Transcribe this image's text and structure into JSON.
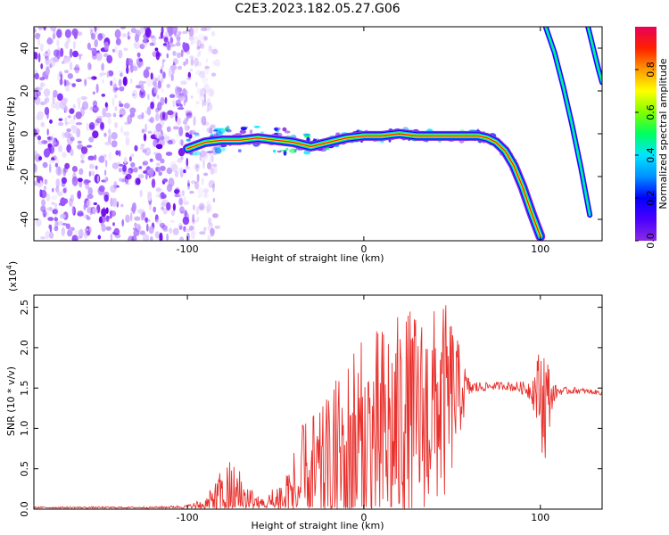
{
  "title": "C2E3.2023.182.05.27.G06",
  "chart_data": [
    {
      "type": "heatmap",
      "xlabel": "Height of straight line (km)",
      "ylabel": "Frequency (Hz)",
      "xlim": [
        -187,
        135
      ],
      "ylim": [
        -50,
        50
      ],
      "xticks": [
        -100,
        0,
        100
      ],
      "yticks": [
        -40,
        -20,
        0,
        20,
        40
      ],
      "colorbar": {
        "label": "Normalized spectral amplitude",
        "range": [
          0,
          1
        ],
        "ticks": [
          "0.0",
          "0.2",
          "0.4",
          "0.6",
          "0.8"
        ],
        "colormap": [
          "#8a2be2",
          "#4b00ff",
          "#0000ff",
          "#0090ff",
          "#00e5ff",
          "#00ff60",
          "#80ff00",
          "#ffff00",
          "#ff9900",
          "#ff2000",
          "#e8005a"
        ]
      },
      "features": [
        {
          "name": "noise",
          "x_range": [
            -187,
            -93
          ],
          "freq_range": [
            -50,
            50
          ]
        },
        {
          "name": "main_ridge",
          "x": [
            -100,
            -90,
            -80,
            -70,
            -60,
            -50,
            -40,
            -30,
            -20,
            -10,
            0,
            10,
            20,
            30,
            40,
            50,
            60,
            65,
            70,
            75,
            80,
            85,
            90,
            95,
            100
          ],
          "freq": [
            -7,
            -4,
            -3,
            -3,
            -2,
            -3,
            -4,
            -6,
            -4,
            -2,
            -1,
            -1,
            0,
            -1,
            -1,
            -1,
            -1,
            -1,
            -2,
            -4,
            -8,
            -15,
            -25,
            -37,
            -48
          ]
        },
        {
          "name": "right_ridge_1",
          "x": [
            103,
            108,
            113,
            118,
            123,
            128
          ],
          "freq": [
            50,
            38,
            22,
            4,
            -16,
            -38
          ]
        },
        {
          "name": "right_ridge_2",
          "x": [
            127,
            130,
            133,
            135
          ],
          "freq": [
            50,
            40,
            30,
            24
          ]
        }
      ]
    },
    {
      "type": "line",
      "xlabel": "Height of straight line (km)",
      "ylabel": "SNR (10 * v/v)",
      "yscale_label": "(x10",
      "yscale_exp": "4",
      "yscale_close": ")",
      "xlim": [
        -187,
        135
      ],
      "ylim": [
        0,
        2.65
      ],
      "xticks": [
        -100,
        0,
        100
      ],
      "yticks": [
        0.0,
        0.5,
        1.0,
        1.5,
        2.0,
        2.5
      ],
      "color": "#e8312d",
      "envelope": {
        "x": [
          -187,
          -120,
          -100,
          -90,
          -85,
          -80,
          -75,
          -70,
          -65,
          -60,
          -55,
          -50,
          -45,
          -40,
          -35,
          -30,
          -25,
          -20,
          -15,
          -10,
          -5,
          0,
          5,
          10,
          15,
          20,
          25,
          30,
          35,
          40,
          45,
          50,
          55,
          60,
          70,
          80,
          90,
          95,
          100,
          102,
          104,
          106,
          110,
          120,
          130,
          135
        ],
        "base": [
          0.02,
          0.02,
          0.03,
          0.05,
          0.1,
          0.14,
          0.18,
          0.15,
          0.1,
          0.07,
          0.06,
          0.08,
          0.12,
          0.2,
          0.28,
          0.35,
          0.4,
          0.45,
          0.55,
          0.62,
          0.7,
          0.75,
          0.8,
          0.85,
          0.95,
          1.0,
          1.05,
          1.1,
          1.15,
          1.25,
          1.3,
          1.4,
          1.45,
          1.5,
          1.52,
          1.53,
          1.5,
          1.48,
          1.45,
          1.35,
          1.3,
          1.4,
          1.46,
          1.47,
          1.45,
          1.44
        ],
        "amp": [
          0.01,
          0.01,
          0.02,
          0.1,
          0.2,
          0.4,
          0.45,
          0.35,
          0.2,
          0.1,
          0.1,
          0.25,
          0.4,
          0.55,
          0.75,
          0.9,
          0.8,
          1.0,
          1.1,
          1.3,
          1.4,
          1.35,
          1.4,
          1.45,
          1.5,
          1.4,
          1.45,
          1.35,
          1.3,
          1.25,
          1.3,
          1.0,
          0.5,
          0.1,
          0.05,
          0.05,
          0.08,
          0.15,
          0.6,
          0.8,
          0.7,
          0.2,
          0.05,
          0.04,
          0.03,
          0.03
        ]
      }
    }
  ]
}
